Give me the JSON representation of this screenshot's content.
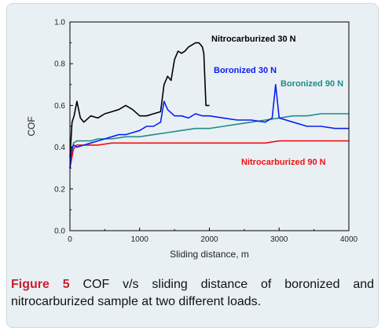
{
  "caption": {
    "label": "Figure 5",
    "text": "COF v/s sliding distance of boronized and nitrocarburized sample at two different loads."
  },
  "chart_data": {
    "type": "line",
    "xlabel": "Sliding distance, m",
    "ylabel": "COF",
    "xlim": [
      0,
      4000
    ],
    "ylim": [
      0.0,
      1.0
    ],
    "x_ticks": [
      "0",
      "1000",
      "2000",
      "3000",
      "4000"
    ],
    "y_ticks": [
      "0.0",
      "0.2",
      "0.4",
      "0.6",
      "0.8",
      "1.0"
    ],
    "grid": false,
    "legend": "inline labels next to curves",
    "series": [
      {
        "name": "Nitrocarburized 30 N",
        "color": "#000000",
        "x": [
          0,
          30,
          60,
          100,
          150,
          200,
          300,
          400,
          500,
          600,
          700,
          800,
          900,
          1000,
          1100,
          1200,
          1300,
          1350,
          1400,
          1450,
          1500,
          1550,
          1600,
          1650,
          1700,
          1750,
          1800,
          1850,
          1900,
          1920,
          1950,
          2000
        ],
        "y": [
          0.35,
          0.52,
          0.55,
          0.62,
          0.54,
          0.52,
          0.55,
          0.54,
          0.56,
          0.57,
          0.58,
          0.6,
          0.58,
          0.55,
          0.55,
          0.56,
          0.57,
          0.7,
          0.74,
          0.72,
          0.82,
          0.86,
          0.85,
          0.86,
          0.88,
          0.89,
          0.9,
          0.9,
          0.88,
          0.85,
          0.6,
          0.6
        ]
      },
      {
        "name": "Boronized 30 N",
        "color": "#0a1ef0",
        "x": [
          0,
          30,
          60,
          100,
          200,
          300,
          400,
          500,
          600,
          700,
          800,
          900,
          1000,
          1100,
          1200,
          1300,
          1350,
          1400,
          1500,
          1600,
          1700,
          1800,
          1900,
          2000,
          2200,
          2400,
          2600,
          2800,
          2900,
          2950,
          3000,
          3200,
          3400,
          3600,
          3800,
          4000
        ],
        "y": [
          0.3,
          0.4,
          0.41,
          0.4,
          0.41,
          0.42,
          0.43,
          0.44,
          0.45,
          0.46,
          0.46,
          0.47,
          0.48,
          0.5,
          0.5,
          0.52,
          0.62,
          0.58,
          0.55,
          0.55,
          0.54,
          0.56,
          0.55,
          0.55,
          0.54,
          0.53,
          0.53,
          0.52,
          0.54,
          0.7,
          0.54,
          0.52,
          0.5,
          0.5,
          0.49,
          0.49
        ]
      },
      {
        "name": "Boronized 90 N",
        "color": "#1e8c8c",
        "x": [
          0,
          50,
          100,
          200,
          300,
          400,
          600,
          800,
          1000,
          1200,
          1400,
          1600,
          1800,
          2000,
          2200,
          2400,
          2600,
          2800,
          3000,
          3200,
          3400,
          3600,
          3800,
          4000
        ],
        "y": [
          0.3,
          0.42,
          0.43,
          0.43,
          0.43,
          0.44,
          0.44,
          0.45,
          0.45,
          0.46,
          0.47,
          0.48,
          0.49,
          0.49,
          0.5,
          0.51,
          0.52,
          0.53,
          0.54,
          0.55,
          0.55,
          0.56,
          0.56,
          0.56
        ]
      },
      {
        "name": "Nitrocarburized 90 N",
        "color": "#f01010",
        "x": [
          0,
          50,
          100,
          200,
          400,
          600,
          800,
          1000,
          1200,
          1400,
          1600,
          1800,
          2000,
          2200,
          2400,
          2600,
          2800,
          3000,
          3200,
          3400,
          3600,
          3800,
          4000
        ],
        "y": [
          0.3,
          0.39,
          0.41,
          0.41,
          0.41,
          0.42,
          0.42,
          0.42,
          0.42,
          0.42,
          0.42,
          0.42,
          0.42,
          0.42,
          0.42,
          0.42,
          0.42,
          0.43,
          0.43,
          0.43,
          0.43,
          0.43,
          0.43
        ]
      }
    ]
  }
}
